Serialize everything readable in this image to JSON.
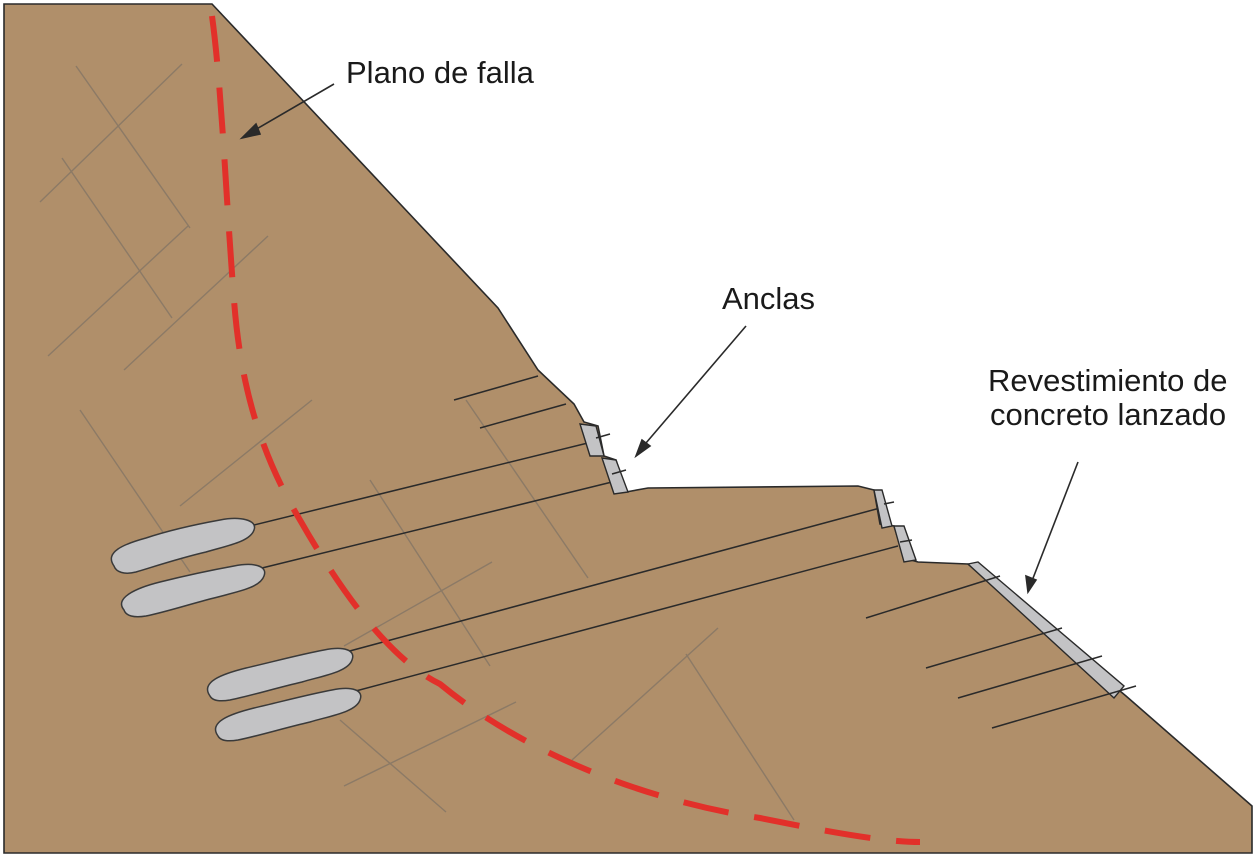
{
  "labels": {
    "failure_plane": "Plano de falla",
    "anchors": "Anclas",
    "shotcrete_line1": "Revestimiento de",
    "shotcrete_line2": "concreto lanzado"
  },
  "colors": {
    "soil": "#b08f6a",
    "failure_plane": "#e2302a",
    "grout": "#c3c3c5",
    "outline": "#2a2a2a",
    "joints": "#8c7a66"
  }
}
